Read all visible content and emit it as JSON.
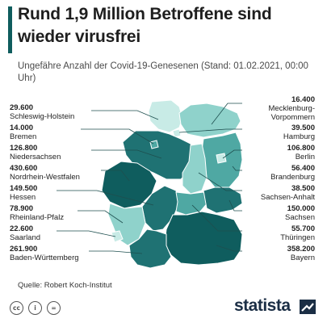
{
  "title": "Rund 1,9 Million Betroffene sind wieder virusfrei",
  "subtitle": "Ungefähre Anzahl der Covid-19-Genesenen (Stand: 01.02.2021, 00:00 Uhr)",
  "source": "Quelle: Robert Koch-Institut",
  "brand": "statista",
  "licenses": [
    "cc",
    "i",
    "="
  ],
  "colors": {
    "accent": "#0f5d5e",
    "darkest": "#0f5d5e",
    "dark": "#1f7273",
    "mid": "#4fa8a3",
    "light": "#8fd2cb",
    "lightest": "#c8ebe6",
    "leader": "#1e4f4f"
  },
  "states": [
    {
      "name": "Schleswig-Holstein",
      "value": "29.600"
    },
    {
      "name": "Bremen",
      "value": "14.000"
    },
    {
      "name": "Niedersachsen",
      "value": "126.800"
    },
    {
      "name": "Nordrhein-Westfalen",
      "value": "430.600"
    },
    {
      "name": "Hessen",
      "value": "149.500"
    },
    {
      "name": "Rheinland-Pfalz",
      "value": "78.900"
    },
    {
      "name": "Saarland",
      "value": "22.600"
    },
    {
      "name": "Baden-Württemberg",
      "value": "261.900"
    },
    {
      "name": "Mecklenburg-Vorpommern",
      "value": "16.400"
    },
    {
      "name": "Hamburg",
      "value": "39.500"
    },
    {
      "name": "Berlin",
      "value": "106.800"
    },
    {
      "name": "Brandenburg",
      "value": "56.400"
    },
    {
      "name": "Sachsen-Anhalt",
      "value": "38.500"
    },
    {
      "name": "Sachsen",
      "value": "150.000"
    },
    {
      "name": "Thüringen",
      "value": "55.700"
    },
    {
      "name": "Bayern",
      "value": "358.200"
    }
  ],
  "left_labels": [
    {
      "value": "29.600",
      "name": "Schleswig-Holstein"
    },
    {
      "value": "14.000",
      "name": "Bremen"
    },
    {
      "value": "126.800",
      "name": "Niedersachsen"
    },
    {
      "value": "430.600",
      "name": "Nordrhein-Westfalen"
    },
    {
      "value": "149.500",
      "name": "Hessen"
    },
    {
      "value": "78.900",
      "name": "Rheinland-Pfalz"
    },
    {
      "value": "22.600",
      "name": "Saarland"
    },
    {
      "value": "261.900",
      "name": "Baden-Württemberg"
    }
  ],
  "right_labels": [
    {
      "value": "16.400",
      "name": "Mecklenburg-Vorpommern",
      "name_line1": "Mecklenburg-",
      "name_line2": "Vorpommern"
    },
    {
      "value": "39.500",
      "name": "Hamburg"
    },
    {
      "value": "106.800",
      "name": "Berlin"
    },
    {
      "value": "56.400",
      "name": "Brandenburg"
    },
    {
      "value": "38.500",
      "name": "Sachsen-Anhalt"
    },
    {
      "value": "150.000",
      "name": "Sachsen"
    },
    {
      "value": "55.700",
      "name": "Thüringen"
    },
    {
      "value": "358.200",
      "name": "Bayern"
    }
  ]
}
